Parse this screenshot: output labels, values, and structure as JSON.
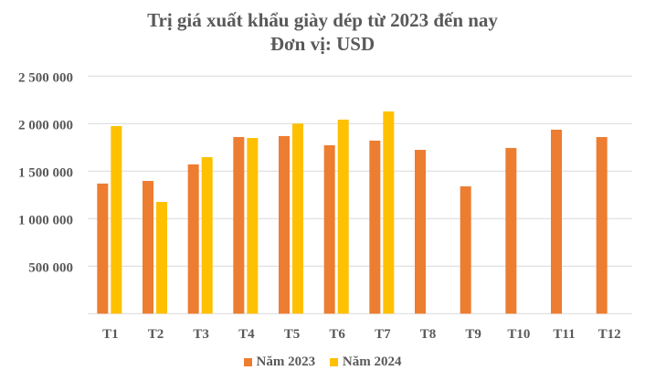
{
  "chart_data": {
    "type": "bar",
    "title": "Trị giá xuất khẩu giày dép từ 2023 đến nay",
    "subtitle": "Đơn vị: USD",
    "categories": [
      "T1",
      "T2",
      "T3",
      "T4",
      "T5",
      "T6",
      "T7",
      "T8",
      "T9",
      "T10",
      "T11",
      "T12"
    ],
    "series": [
      {
        "name": "Năm 2023",
        "color": "#ED7D31",
        "values": [
          1369000,
          1397000,
          1571000,
          1859000,
          1869000,
          1772000,
          1821000,
          1724000,
          1340000,
          1744000,
          1936000,
          1859000
        ]
      },
      {
        "name": "Năm 2024",
        "color": "#FFC000",
        "values": [
          1974000,
          1176000,
          1647000,
          1849000,
          2000000,
          2042000,
          2128000,
          null,
          null,
          null,
          null,
          null
        ]
      }
    ],
    "ylim": [
      0,
      2500000
    ],
    "yticks": [
      0,
      500000,
      1000000,
      1500000,
      2000000,
      2500000
    ],
    "ytick_labels": [
      "",
      "500 000",
      "1 000 000",
      "1 500 000",
      "2 000 000",
      "2 500 000"
    ],
    "grid": true,
    "legend": "bottom"
  }
}
